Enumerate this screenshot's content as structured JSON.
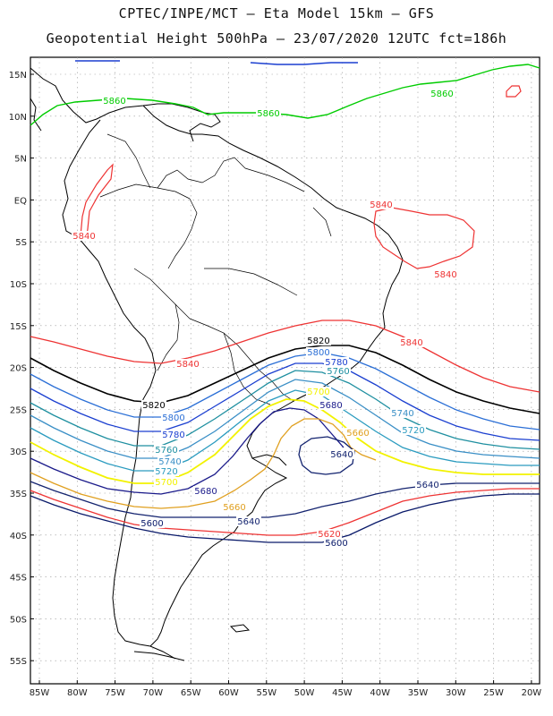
{
  "header": {
    "title_line1": "CPTEC/INPE/MCT –  Eta Model 15km – GFS",
    "title_line2": "Geopotential Height 500hPa – 23/07/2020 12UTC fct=186h"
  },
  "axes": {
    "lat_labels": [
      "15N",
      "10N",
      "5N",
      "EQ",
      "5S",
      "10S",
      "15S",
      "20S",
      "25S",
      "30S",
      "35S",
      "40S",
      "45S",
      "50S",
      "55S"
    ],
    "lon_labels": [
      "85W",
      "80W",
      "75W",
      "70W",
      "65W",
      "60W",
      "55W",
      "50W",
      "45W",
      "40W",
      "35W",
      "30W",
      "25W",
      "20W"
    ]
  },
  "colors": {
    "c5860": "#00cc00",
    "c5840": "#ee3333",
    "c5820": "#000000",
    "c5800": "#2b6fd6",
    "c5780": "#1b3fd0",
    "c5760": "#1e8fa0",
    "c5740": "#3a8fc6",
    "c5720": "#2a9bbf",
    "c5700": "#f2f200",
    "c5680": "#1a1a8a",
    "c5660": "#e0a020",
    "c5640": "#13236f",
    "c5600": "#0a1a6a"
  },
  "contour_labels": [
    {
      "id": "g1",
      "text": "5860"
    },
    {
      "id": "g2",
      "text": "5860"
    },
    {
      "id": "g3",
      "text": "5860"
    },
    {
      "id": "r1",
      "text": "5840"
    },
    {
      "id": "r2",
      "text": "5840"
    },
    {
      "id": "r3",
      "text": "5840"
    },
    {
      "id": "r4",
      "text": "5840"
    },
    {
      "id": "r5",
      "text": "5840"
    },
    {
      "id": "k1",
      "text": "5820"
    },
    {
      "id": "k2",
      "text": "5820"
    },
    {
      "id": "b1",
      "text": "5800"
    },
    {
      "id": "b2",
      "text": "5800"
    },
    {
      "id": "b3",
      "text": "5780"
    },
    {
      "id": "b4",
      "text": "5780"
    },
    {
      "id": "t1",
      "text": "5760"
    },
    {
      "id": "t2",
      "text": "5760"
    },
    {
      "id": "t3",
      "text": "5740"
    },
    {
      "id": "t4",
      "text": "5740"
    },
    {
      "id": "t5",
      "text": "5720"
    },
    {
      "id": "t6",
      "text": "5720"
    },
    {
      "id": "y1",
      "text": "5700"
    },
    {
      "id": "y2",
      "text": "5700"
    },
    {
      "id": "n1",
      "text": "5680"
    },
    {
      "id": "n2",
      "text": "5680"
    },
    {
      "id": "o1",
      "text": "5660"
    },
    {
      "id": "o2",
      "text": "5660"
    },
    {
      "id": "d1",
      "text": "5640"
    },
    {
      "id": "d2",
      "text": "5640"
    },
    {
      "id": "d3",
      "text": "5640"
    },
    {
      "id": "rr",
      "text": "5620"
    },
    {
      "id": "p1",
      "text": "5600"
    },
    {
      "id": "p2",
      "text": "5600"
    }
  ]
}
